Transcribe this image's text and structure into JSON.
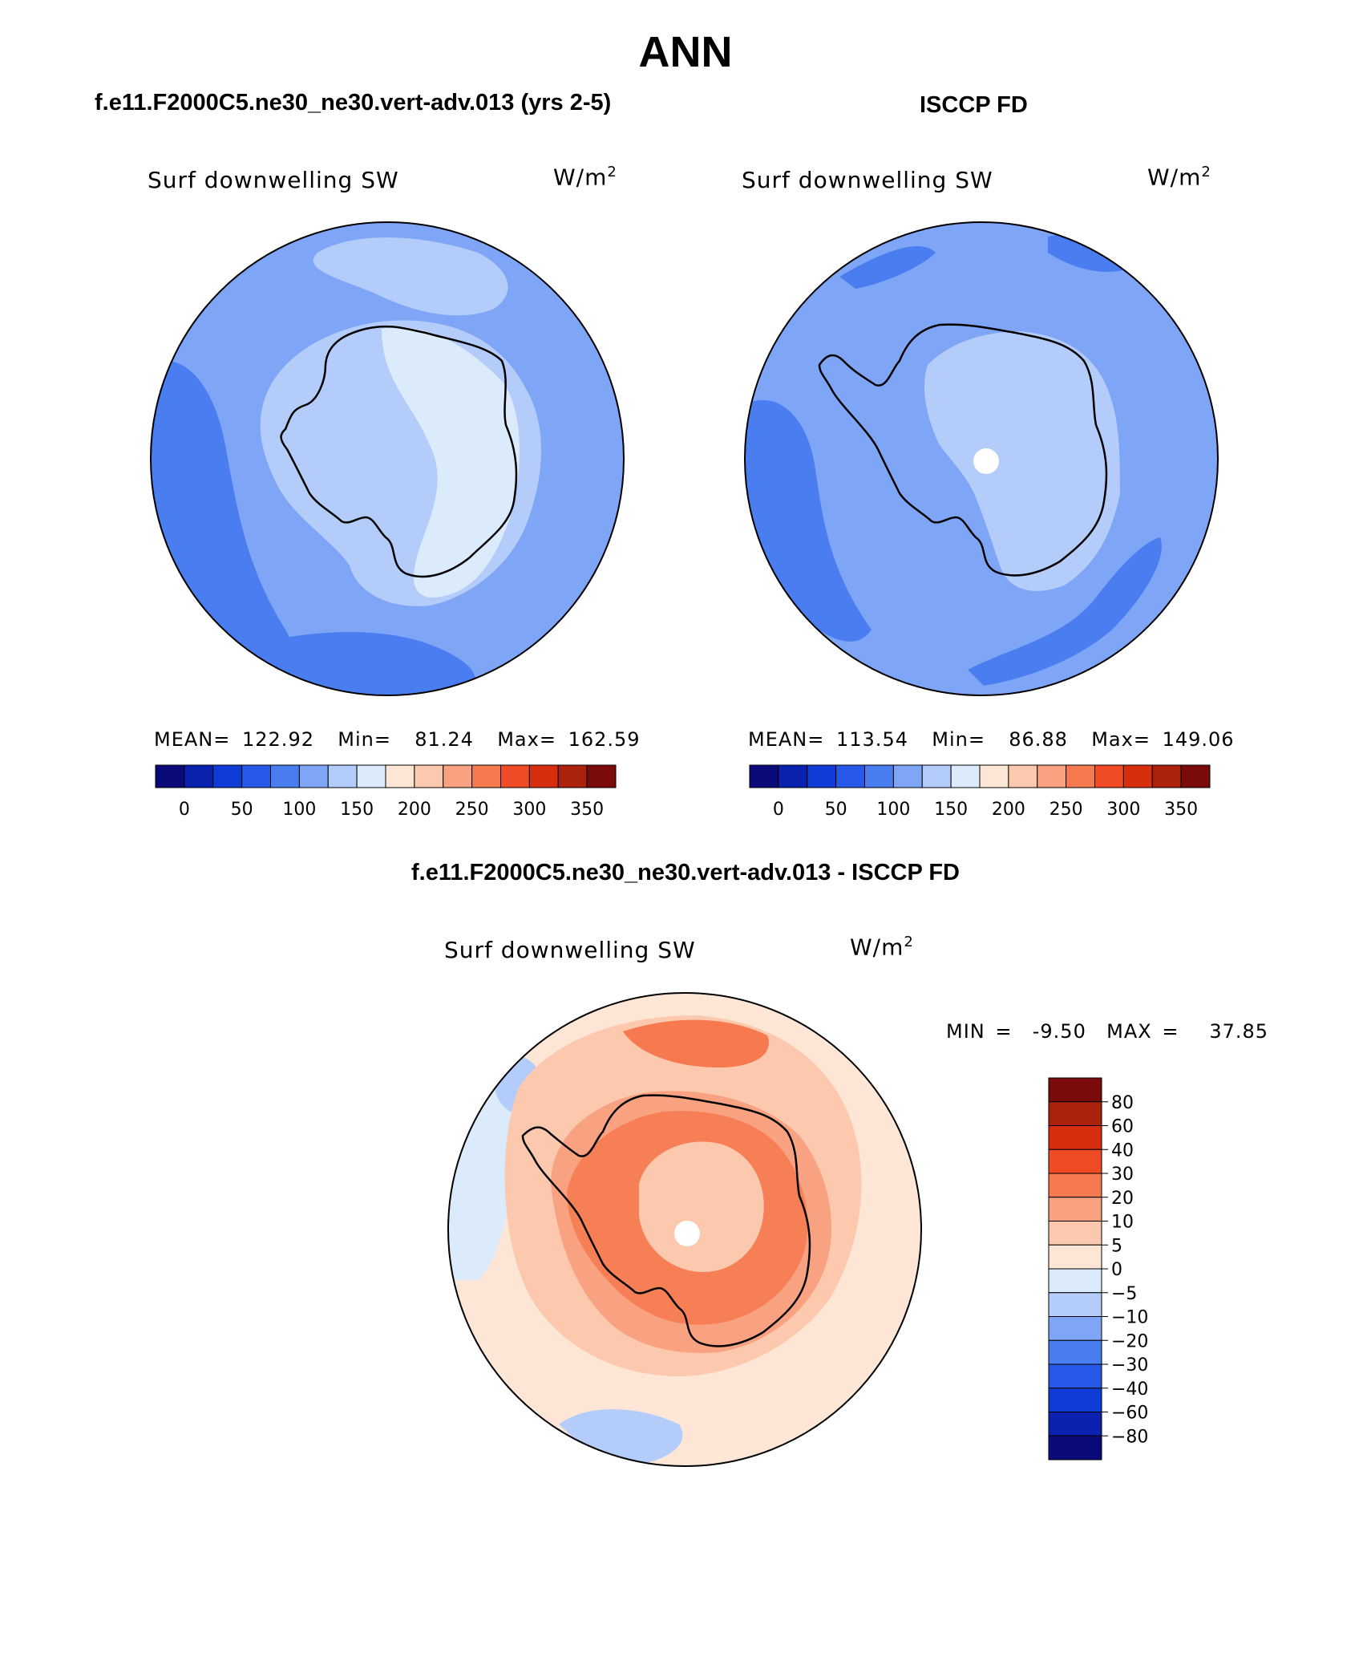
{
  "figure": {
    "season": "ANN",
    "left_title": "f.e11.F2000C5.ne30_ne30.vert-adv.013 (yrs 2-5)",
    "right_title": "ISCCP FD",
    "diff_title": "f.e11.F2000C5.ne30_ne30.vert-adv.013 - ISCCP FD"
  },
  "chart_data": [
    {
      "type": "heatmap",
      "name": "model",
      "variable": "Surf downwelling SW",
      "units": "W/m",
      "units_exp": "2",
      "stats": {
        "mean_label": "MEAN=",
        "mean": "122.92",
        "min_label": "Min=",
        "min": "81.24",
        "max_label": "Max=",
        "max": "162.59"
      },
      "levels": [
        0,
        25,
        50,
        75,
        100,
        125,
        150,
        175,
        200,
        225,
        250,
        275,
        300,
        325,
        350
      ],
      "tick_labels": [
        "0",
        "50",
        "100",
        "150",
        "200",
        "250",
        "300",
        "350"
      ],
      "colors": [
        "#0a0a7a",
        "#0b21b0",
        "#0f3bd6",
        "#2659e8",
        "#4a7ef0",
        "#7fa6f6",
        "#b3ccfa",
        "#dcebfc",
        "#fde6d6",
        "#fcc9ae",
        "#f9a281",
        "#f7794f",
        "#ef4b24",
        "#d72e0f",
        "#aa220b",
        "#7b0a0a"
      ]
    },
    {
      "type": "heatmap",
      "name": "obs",
      "variable": "Surf downwelling SW",
      "units": "W/m",
      "units_exp": "2",
      "stats": {
        "mean_label": "MEAN=",
        "mean": "113.54",
        "min_label": "Min=",
        "min": "86.88",
        "max_label": "Max=",
        "max": "149.06"
      },
      "levels": [
        0,
        25,
        50,
        75,
        100,
        125,
        150,
        175,
        200,
        225,
        250,
        275,
        300,
        325,
        350
      ],
      "tick_labels": [
        "0",
        "50",
        "100",
        "150",
        "200",
        "250",
        "300",
        "350"
      ],
      "colors": [
        "#0a0a7a",
        "#0b21b0",
        "#0f3bd6",
        "#2659e8",
        "#4a7ef0",
        "#7fa6f6",
        "#b3ccfa",
        "#dcebfc",
        "#fde6d6",
        "#fcc9ae",
        "#f9a281",
        "#f7794f",
        "#ef4b24",
        "#d72e0f",
        "#aa220b",
        "#7b0a0a"
      ]
    },
    {
      "type": "heatmap",
      "name": "difference",
      "variable": "Surf downwelling SW",
      "units": "W/m",
      "units_exp": "2",
      "stats": {
        "min_label": "MIN =",
        "min": "-9.50",
        "max_label": "MAX =",
        "max": "37.85"
      },
      "levels": [
        80,
        60,
        40,
        30,
        20,
        10,
        5,
        0,
        -5,
        -10,
        -20,
        -30,
        -40,
        -60,
        -80
      ],
      "tick_labels": [
        "80",
        "60",
        "40",
        "30",
        "20",
        "10",
        "5",
        "0",
        "−5",
        "−10",
        "−20",
        "−30",
        "−40",
        "−60",
        "−80"
      ],
      "colors_top_to_bottom": [
        "#7b0a0a",
        "#aa220b",
        "#d72e0f",
        "#ef4b24",
        "#f7794f",
        "#f9a281",
        "#fcc9ae",
        "#fde6d6",
        "#dcebfc",
        "#b3ccfa",
        "#7fa6f6",
        "#4a7ef0",
        "#2659e8",
        "#0f3bd6",
        "#0b21b0",
        "#0a0a7a"
      ]
    }
  ]
}
